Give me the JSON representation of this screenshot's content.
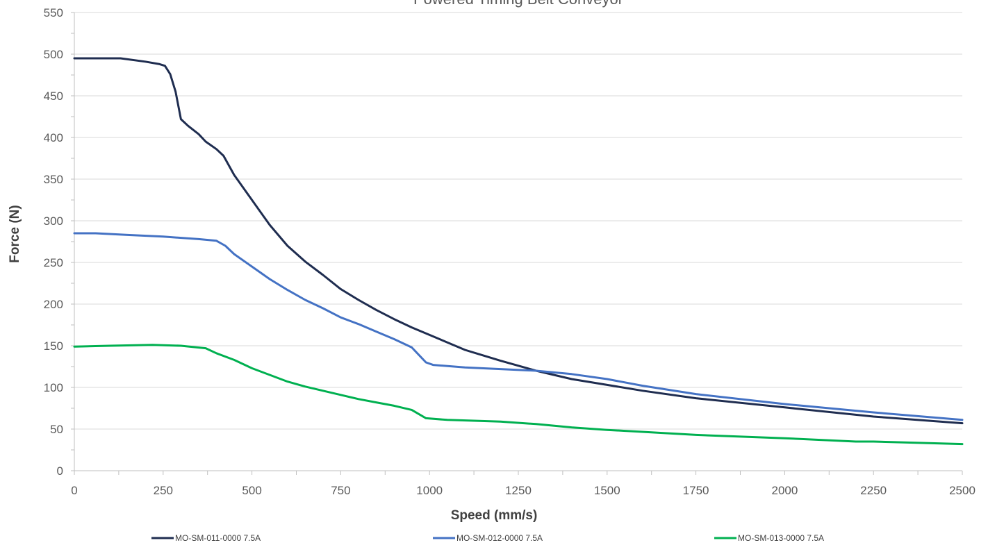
{
  "chart_data": {
    "type": "line",
    "title": "Powered Timing Belt Conveyor",
    "xlabel": "Speed (mm/s)",
    "ylabel": "Force (N)",
    "xlim": [
      0,
      2500
    ],
    "ylim": [
      0,
      550
    ],
    "x_ticks": [
      0,
      250,
      500,
      750,
      1000,
      1250,
      1500,
      1750,
      2000,
      2250,
      2500
    ],
    "y_ticks": [
      0,
      50,
      100,
      150,
      200,
      250,
      300,
      350,
      400,
      450,
      500,
      550
    ],
    "grid": "horizontal",
    "legend_position": "bottom",
    "series": [
      {
        "name": "MO-SM-011-0000 7.5A",
        "color": "#1f2d50",
        "points": [
          [
            0,
            495
          ],
          [
            130,
            495
          ],
          [
            200,
            491
          ],
          [
            240,
            488
          ],
          [
            255,
            486
          ],
          [
            270,
            476
          ],
          [
            285,
            455
          ],
          [
            300,
            422
          ],
          [
            320,
            414
          ],
          [
            350,
            404
          ],
          [
            370,
            395
          ],
          [
            400,
            386
          ],
          [
            420,
            378
          ],
          [
            450,
            355
          ],
          [
            500,
            325
          ],
          [
            550,
            295
          ],
          [
            600,
            270
          ],
          [
            650,
            251
          ],
          [
            700,
            235
          ],
          [
            750,
            218
          ],
          [
            800,
            205
          ],
          [
            850,
            193
          ],
          [
            900,
            182
          ],
          [
            950,
            172
          ],
          [
            1000,
            163
          ],
          [
            1100,
            145
          ],
          [
            1200,
            132
          ],
          [
            1300,
            120
          ],
          [
            1400,
            110
          ],
          [
            1500,
            103
          ],
          [
            1600,
            96
          ],
          [
            1750,
            87
          ],
          [
            2000,
            76
          ],
          [
            2250,
            65
          ],
          [
            2500,
            57
          ]
        ]
      },
      {
        "name": "MO-SM-012-0000 7.5A",
        "color": "#4472c4",
        "points": [
          [
            0,
            285
          ],
          [
            60,
            285
          ],
          [
            150,
            283
          ],
          [
            250,
            281
          ],
          [
            350,
            278
          ],
          [
            400,
            276
          ],
          [
            425,
            270
          ],
          [
            450,
            260
          ],
          [
            500,
            245
          ],
          [
            550,
            230
          ],
          [
            600,
            217
          ],
          [
            650,
            205
          ],
          [
            700,
            195
          ],
          [
            750,
            184
          ],
          [
            800,
            176
          ],
          [
            850,
            167
          ],
          [
            900,
            158
          ],
          [
            950,
            148
          ],
          [
            990,
            130
          ],
          [
            1010,
            127
          ],
          [
            1100,
            124
          ],
          [
            1200,
            122
          ],
          [
            1300,
            120
          ],
          [
            1400,
            116
          ],
          [
            1500,
            110
          ],
          [
            1600,
            102
          ],
          [
            1750,
            92
          ],
          [
            2000,
            80
          ],
          [
            2250,
            70
          ],
          [
            2500,
            61
          ]
        ]
      },
      {
        "name": "MO-SM-013-0000 7.5A",
        "color": "#00b050",
        "points": [
          [
            0,
            149
          ],
          [
            100,
            150
          ],
          [
            220,
            151
          ],
          [
            300,
            150
          ],
          [
            370,
            147
          ],
          [
            400,
            141
          ],
          [
            450,
            133
          ],
          [
            500,
            123
          ],
          [
            550,
            115
          ],
          [
            600,
            107
          ],
          [
            650,
            101
          ],
          [
            700,
            96
          ],
          [
            750,
            91
          ],
          [
            800,
            86
          ],
          [
            850,
            82
          ],
          [
            900,
            78
          ],
          [
            950,
            73
          ],
          [
            990,
            63
          ],
          [
            1050,
            61
          ],
          [
            1200,
            59
          ],
          [
            1300,
            56
          ],
          [
            1400,
            52
          ],
          [
            1500,
            49
          ],
          [
            1750,
            43
          ],
          [
            2000,
            39
          ],
          [
            2200,
            35
          ],
          [
            2250,
            35
          ],
          [
            2500,
            32
          ]
        ]
      }
    ]
  }
}
